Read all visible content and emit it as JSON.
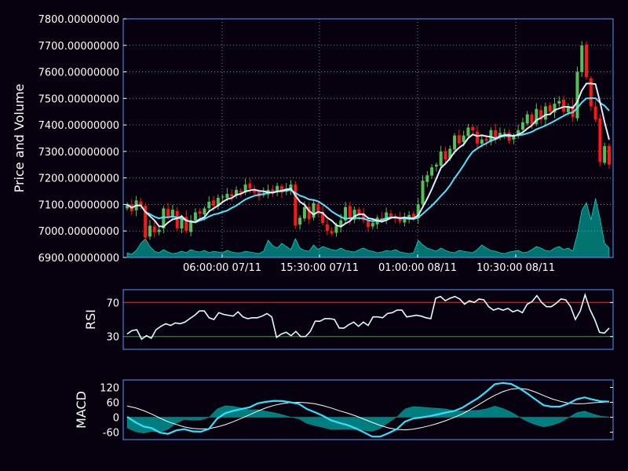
{
  "chart_data": [
    {
      "type": "candlestick",
      "panel": "price",
      "ylabel": "Price and Volume",
      "ylim": [
        6900,
        7800
      ],
      "yticks": [
        "6900.00000000",
        "7000.00000000",
        "7100.00000000",
        "7200.00000000",
        "7300.00000000",
        "7400.00000000",
        "7500.00000000",
        "7600.00000000",
        "7700.00000000",
        "7800.00000000"
      ],
      "xticks": [
        "06:00:00 07/11",
        "15:30:00 07/11",
        "01:00:00 08/11",
        "10:30:00 08/11"
      ],
      "grid": true,
      "close": [
        7100,
        7075,
        7115,
        7095,
        6975,
        7020,
        6995,
        7005,
        7085,
        7055,
        7080,
        7010,
        7050,
        7000,
        7040,
        7070,
        7065,
        7085,
        7110,
        7095,
        7125,
        7130,
        7140,
        7130,
        7155,
        7145,
        7175,
        7160,
        7145,
        7130,
        7140,
        7155,
        7150,
        7170,
        7145,
        7160,
        7175,
        7020,
        7050,
        7090,
        7045,
        7105,
        7070,
        7030,
        7000,
        6990,
        7020,
        7040,
        7090,
        7045,
        7080,
        7060,
        7040,
        7015,
        7030,
        7050,
        7040,
        7070,
        7055,
        7045,
        7035,
        7050,
        7060,
        7050,
        7100,
        7190,
        7210,
        7240,
        7250,
        7300,
        7270,
        7310,
        7360,
        7330,
        7360,
        7390,
        7380,
        7330,
        7345,
        7340,
        7380,
        7350,
        7370,
        7370,
        7340,
        7360,
        7380,
        7410,
        7440,
        7400,
        7460,
        7420,
        7470,
        7450,
        7480,
        7490,
        7450,
        7470,
        7430,
        7600,
        7700,
        7580,
        7470,
        7420,
        7260,
        7320,
        7250
      ]
    },
    {
      "type": "line",
      "panel": "rsi",
      "ylabel": "RSI",
      "ylim": [
        15,
        85
      ],
      "yticks": [
        "30",
        "70"
      ],
      "lines": [
        70,
        30
      ],
      "colors": {
        "upper": "#ff3030",
        "lower": "#3fa33f",
        "line": "#dffcff"
      },
      "values": [
        33,
        37,
        38,
        27,
        31,
        28,
        38,
        42,
        45,
        43,
        46,
        45,
        47,
        51,
        55,
        60,
        60,
        52,
        50,
        58,
        56,
        55,
        54,
        59,
        53,
        51,
        52,
        52,
        54,
        57,
        53,
        29,
        33,
        35,
        31,
        36,
        30,
        30,
        36,
        48,
        48,
        51,
        51,
        50,
        40,
        40,
        44,
        47,
        42,
        47,
        43,
        53,
        53,
        52,
        57,
        58,
        61,
        61,
        53,
        54,
        55,
        54,
        52,
        51,
        75,
        77,
        72,
        75,
        77,
        74,
        68,
        72,
        70,
        74,
        73,
        65,
        61,
        63,
        61,
        63,
        59,
        61,
        58,
        68,
        71,
        78,
        70,
        65,
        65,
        69,
        74,
        73,
        65,
        50,
        60,
        79,
        62,
        50,
        35,
        34,
        40
      ]
    },
    {
      "type": "line",
      "panel": "macd",
      "ylabel": "MACD",
      "ylim": [
        -90,
        150
      ],
      "yticks": [
        "-60",
        "0",
        "60",
        "120"
      ],
      "series": [
        {
          "name": "macd",
          "color": "#2ee3ff",
          "values": [
            2,
            -20,
            -37,
            -44,
            -62,
            -67,
            -53,
            -48,
            -57,
            -58,
            -47,
            -6,
            16,
            26,
            33,
            40,
            56,
            62,
            66,
            65,
            60,
            54,
            33,
            20,
            5,
            -13,
            -23,
            -32,
            -45,
            -61,
            -78,
            -78,
            -64,
            -48,
            -18,
            -5,
            -1,
            4,
            11,
            19,
            25,
            38,
            58,
            78,
            104,
            133,
            138,
            134,
            117,
            95,
            71,
            48,
            42,
            43,
            55,
            72,
            80,
            71,
            64,
            63
          ]
        },
        {
          "name": "signal",
          "color": "#ffffff",
          "values": [
            45,
            38,
            27,
            13,
            -3,
            -18,
            -29,
            -39,
            -45,
            -47,
            -46,
            -39,
            -30,
            -18,
            -4,
            10,
            25,
            38,
            48,
            55,
            59,
            60,
            58,
            54,
            46,
            37,
            26,
            16,
            5,
            -8,
            -21,
            -33,
            -43,
            -49,
            -51,
            -48,
            -42,
            -34,
            -25,
            -14,
            -1,
            13,
            31,
            50,
            70,
            88,
            103,
            113,
            116,
            112,
            101,
            87,
            74,
            64,
            57,
            54,
            55,
            58,
            60,
            62
          ]
        },
        {
          "name": "hist",
          "color": "#008b8b",
          "values": [
            -43,
            -58,
            -64,
            -57,
            -59,
            -49,
            -24,
            -9,
            -12,
            -11,
            -1,
            33,
            46,
            44,
            37,
            30,
            31,
            24,
            18,
            10,
            1,
            -6,
            -25,
            -34,
            -41,
            -50,
            -49,
            -48,
            -50,
            -53,
            -57,
            -45,
            -21,
            1,
            33,
            43,
            41,
            38,
            36,
            33,
            26,
            25,
            27,
            28,
            34,
            45,
            35,
            21,
            1,
            -17,
            -30,
            -39,
            -32,
            -21,
            -2,
            18,
            25,
            13,
            4,
            1
          ]
        }
      ]
    }
  ],
  "colors": {
    "background": "#07000e",
    "spine": "#5998ff",
    "up": "#53c156",
    "down": "#ff1717",
    "ma_fast": "#e1edf9",
    "ma_slow": "#4ee6fd",
    "volume": "#00ffe8",
    "grid": "#cccccc"
  }
}
